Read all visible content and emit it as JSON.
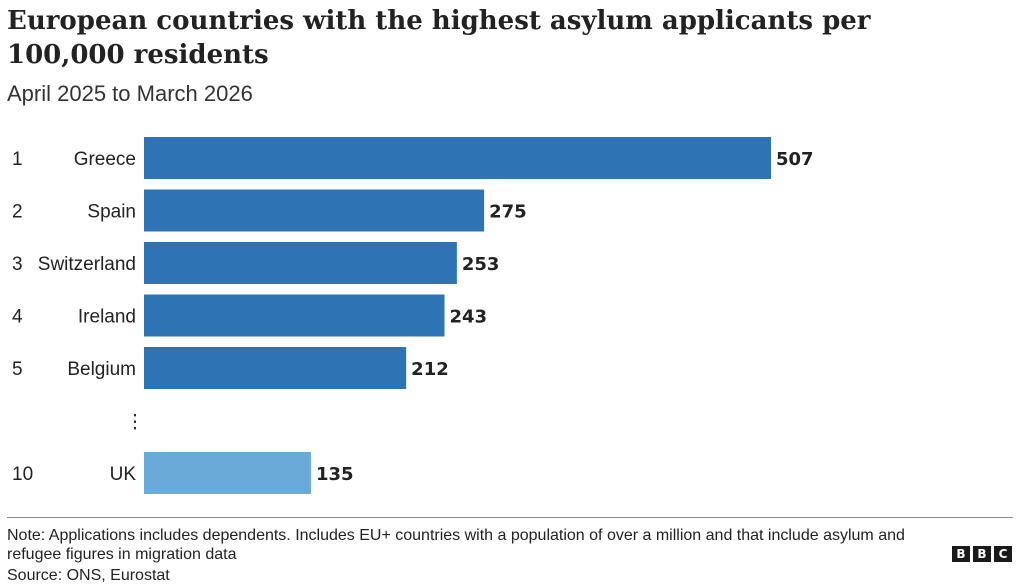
{
  "title": "European countries with the highest asylum applicants per 100,000 residents",
  "subtitle": "April 2025 to March 2026",
  "note": "Note: Applications includes dependents. Includes EU+ countries with a population of over a million and that include asylum and refugee figures in migration data",
  "source": "Source: ONS, Eurostat",
  "logo": [
    "B",
    "B",
    "C"
  ],
  "chart_data": {
    "type": "bar",
    "orientation": "horizontal",
    "title": "European countries with the highest asylum applicants per 100,000 residents",
    "subtitle": "April 2025 to March 2026",
    "categories": [
      "Greece",
      "Spain",
      "Switzerland",
      "Ireland",
      "Belgium",
      "UK"
    ],
    "ranks": [
      "1",
      "2",
      "3",
      "4",
      "5",
      "10"
    ],
    "values": [
      507,
      275,
      253,
      243,
      212,
      135
    ],
    "value_labels": [
      "507",
      "275",
      "253",
      "243",
      "212",
      "135"
    ],
    "gap_marker": "⋮",
    "gap_after_index": 4,
    "xlim": [
      0,
      507
    ],
    "grid": false,
    "legend": "none",
    "colors": {
      "default": "#2e74b5",
      "highlight": "#6aaad8",
      "highlight_category": "UK"
    }
  }
}
